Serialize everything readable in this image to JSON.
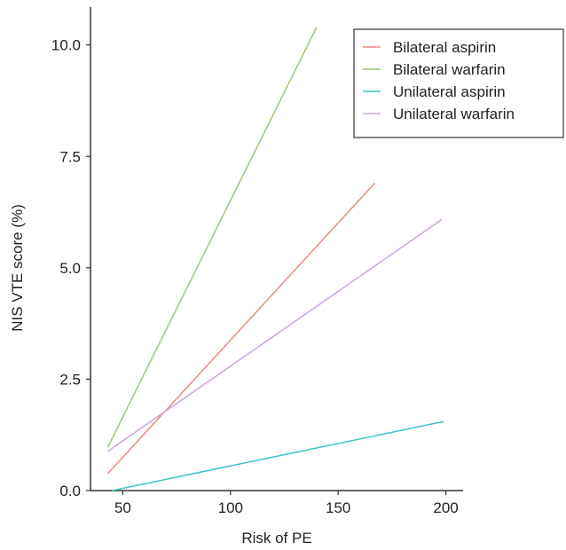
{
  "chart_data": {
    "type": "line",
    "xlabel": "Risk of PE",
    "ylabel": "NIS VTE score (%)",
    "xlim": [
      35,
      208
    ],
    "ylim": [
      0,
      10.85
    ],
    "x_ticks": [
      50,
      100,
      150,
      200
    ],
    "x_tick_labels": [
      "50",
      "100",
      "150",
      "200"
    ],
    "y_ticks": [
      0,
      2.5,
      5,
      7.5,
      10
    ],
    "y_tick_labels": [
      "0.0",
      "2.5",
      "5.0",
      "7.5",
      "10.0"
    ],
    "legend_position": "top-right",
    "grid": false,
    "series": [
      {
        "name": "Bilateral aspirin",
        "color": "#ec8a80",
        "x": [
          43,
          167
        ],
        "y": [
          0.38,
          6.9
        ]
      },
      {
        "name": "Bilateral warfarin",
        "color": "#98cc74",
        "x": [
          43,
          140
        ],
        "y": [
          0.97,
          10.4
        ]
      },
      {
        "name": "Unilateral aspirin",
        "color": "#3fc4c8",
        "x": [
          45,
          199
        ],
        "y": [
          0.0,
          1.55
        ]
      },
      {
        "name": "Unilateral warfarin",
        "color": "#cca4dc",
        "x": [
          43,
          198
        ],
        "y": [
          0.88,
          6.08
        ]
      }
    ]
  }
}
